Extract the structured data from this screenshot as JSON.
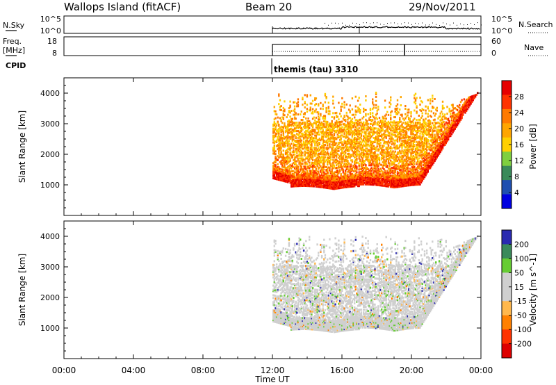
{
  "header": {
    "station": "Wallops Island (fitACF)",
    "beam": "Beam 20",
    "date": "29/Nov/2011"
  },
  "sky_panel": {
    "left_label": "N.Sky",
    "left_ticks": [
      "10^5",
      "10^0"
    ],
    "right_ticks": [
      "10^5",
      "10^0"
    ],
    "right_label": "N.Search"
  },
  "freq_panel": {
    "left_label_1": "Freq.",
    "left_label_2": "[MHz]",
    "left_ticks": [
      "18",
      "8"
    ],
    "right_ticks": [
      "60",
      "0"
    ],
    "right_label": "Nave"
  },
  "cpid": {
    "label": "CPID",
    "program": "themis (tau) 3310"
  },
  "power_panel": {
    "ylabel": "Slant Range [km]",
    "colorbar_label": "Power [dB]",
    "colorbar_ticks": [
      "28",
      "24",
      "20",
      "16",
      "12",
      "8",
      "4"
    ]
  },
  "velocity_panel": {
    "ylabel": "Slant Range [km]",
    "colorbar_label": "Velocity [m s^-1]",
    "colorbar_ticks": [
      "200",
      "100",
      "50",
      "15",
      "-15",
      "-50",
      "-100",
      "-200"
    ]
  },
  "xaxis": {
    "label": "Time UT",
    "ticks": [
      "00:00",
      "04:00",
      "08:00",
      "12:00",
      "16:00",
      "20:00",
      "00:00"
    ]
  },
  "colors": {
    "power_scale": [
      "#e60000",
      "#ff3300",
      "#ff7a00",
      "#ffa500",
      "#ffd000",
      "#7fcf3f",
      "#3a8a5a",
      "#1f4fb0",
      "#0000e0"
    ],
    "velocity_scale": [
      "#2a2ab0",
      "#3a8a5a",
      "#66cc33",
      "#cfcfcf",
      "#cfcfcf",
      "#ffb84d",
      "#ff8000",
      "#ff3300",
      "#dd0000"
    ]
  },
  "chart_data": [
    {
      "type": "line",
      "title": "N.Sky / N.Search",
      "x_range_hours": [
        0,
        24
      ],
      "data_start_hour": 12,
      "yscale": "log",
      "ylim": [
        1,
        100000
      ]
    },
    {
      "type": "line",
      "title": "Freq. [MHz] / Nave",
      "x_range_hours": [
        0,
        24
      ],
      "data_start_hour": 12,
      "freq_mhz_level": 14,
      "freq_switch_hours": [
        17,
        19.6
      ],
      "ylim": [
        8,
        18
      ]
    },
    {
      "type": "heatmap",
      "title": "Power [dB]",
      "ylabel": "Slant Range [km]",
      "xlabel": "Time UT",
      "x_range_hours": [
        0,
        24
      ],
      "ylim": [
        0,
        4500
      ],
      "ytick_values": [
        1000,
        2000,
        3000,
        4000
      ],
      "colorbar_range": [
        0,
        32
      ],
      "data_start_hour": 12,
      "data_end_hour": 24
    },
    {
      "type": "heatmap",
      "title": "Velocity [m s^-1]",
      "ylabel": "Slant Range [km]",
      "xlabel": "Time UT",
      "x_range_hours": [
        0,
        24
      ],
      "ylim": [
        0,
        4500
      ],
      "ytick_values": [
        1000,
        2000,
        3000,
        4000
      ],
      "colorbar_range": [
        -250,
        250
      ],
      "data_start_hour": 12,
      "data_end_hour": 24
    }
  ]
}
